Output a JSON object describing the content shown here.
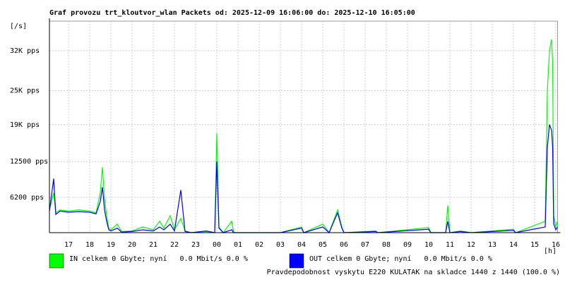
{
  "chart_data": {
    "type": "line",
    "title": "Graf provozu trt_kloutvor_wlan Packets od: 2025-12-09 16:06:00 do: 2025-12-10 16:05:00",
    "y_label": "[/s]",
    "x_label": "[h]",
    "footer": "Pravdepodobnost vyskytu E220 KULATAK na skladce 1440 z 1440 (100.0 %)",
    "footer_color": "#ff0000",
    "grid": true,
    "xlim": [
      16.1,
      40.083
    ],
    "xticks": [
      {
        "value": 17,
        "label": "17"
      },
      {
        "value": 18,
        "label": "18"
      },
      {
        "value": 19,
        "label": "19"
      },
      {
        "value": 20,
        "label": "20"
      },
      {
        "value": 21,
        "label": "21"
      },
      {
        "value": 22,
        "label": "22"
      },
      {
        "value": 23,
        "label": "23"
      },
      {
        "value": 24,
        "label": "00"
      },
      {
        "value": 25,
        "label": "01"
      },
      {
        "value": 26,
        "label": "02"
      },
      {
        "value": 27,
        "label": "03"
      },
      {
        "value": 28,
        "label": "04"
      },
      {
        "value": 29,
        "label": "05"
      },
      {
        "value": 30,
        "label": "06"
      },
      {
        "value": 31,
        "label": "07"
      },
      {
        "value": 32,
        "label": "08"
      },
      {
        "value": 33,
        "label": "09"
      },
      {
        "value": 34,
        "label": "10"
      },
      {
        "value": 35,
        "label": "11"
      },
      {
        "value": 36,
        "label": "12"
      },
      {
        "value": 37,
        "label": "13"
      },
      {
        "value": 38,
        "label": "14"
      },
      {
        "value": 39,
        "label": "15"
      },
      {
        "value": 40,
        "label": "16"
      }
    ],
    "ylim": [
      0,
      37200
    ],
    "yticks": [
      {
        "value": 6200,
        "label": "6200 pps"
      },
      {
        "value": 12500,
        "label": "12500 pps"
      },
      {
        "value": 19000,
        "label": "19K pps"
      },
      {
        "value": 25000,
        "label": "25K pps"
      },
      {
        "value": 32000,
        "label": "32K pps"
      }
    ],
    "x": [
      16.1,
      16.3,
      16.4,
      16.6,
      17.0,
      17.5,
      18.0,
      18.3,
      18.5,
      18.6,
      18.7,
      18.8,
      18.9,
      19.0,
      19.3,
      19.5,
      20.0,
      20.5,
      21.0,
      21.3,
      21.5,
      21.8,
      22.0,
      22.3,
      22.5,
      22.8,
      23.5,
      23.9,
      24.0,
      24.1,
      24.3,
      24.7,
      24.8,
      27.0,
      28.0,
      28.1,
      29.0,
      29.3,
      29.7,
      29.9,
      30.0,
      31.5,
      31.6,
      34.0,
      34.1,
      34.8,
      34.9,
      35.0,
      35.5,
      36.0,
      38.0,
      38.1,
      39.5,
      39.6,
      39.7,
      39.8,
      39.85,
      39.9,
      40.0,
      40.08
    ],
    "series": [
      {
        "name": "IN celkem 0 Gbyte; nyní   0.0 Mbit/s 0.0 %",
        "color": "#00ff00",
        "values": [
          4000,
          7000,
          3500,
          4000,
          3800,
          4000,
          3800,
          3500,
          7000,
          11500,
          6000,
          3000,
          800,
          500,
          1500,
          200,
          300,
          1000,
          500,
          2000,
          800,
          3000,
          500,
          2500,
          300,
          0,
          200,
          0,
          17500,
          1000,
          0,
          2000,
          0,
          0,
          1000,
          0,
          1500,
          0,
          4000,
          1000,
          0,
          300,
          0,
          900,
          0,
          0,
          4800,
          0,
          300,
          0,
          600,
          0,
          2000,
          25000,
          32000,
          34000,
          30000,
          3000,
          1000,
          2000
        ]
      },
      {
        "name": "OUT celkem 0 Gbyte; nyní   0.0 Mbit/s 0.0 %",
        "color": "#0000ff",
        "values": [
          3800,
          9500,
          3200,
          3800,
          3600,
          3700,
          3600,
          3300,
          5500,
          8000,
          4000,
          2000,
          500,
          300,
          800,
          100,
          200,
          500,
          300,
          1000,
          500,
          1500,
          300,
          7500,
          200,
          0,
          300,
          0,
          12500,
          800,
          0,
          500,
          0,
          0,
          800,
          0,
          1000,
          0,
          3500,
          800,
          0,
          200,
          0,
          600,
          0,
          0,
          2000,
          0,
          200,
          0,
          400,
          0,
          1000,
          15000,
          19000,
          18000,
          15000,
          1500,
          500,
          1000
        ]
      }
    ]
  }
}
